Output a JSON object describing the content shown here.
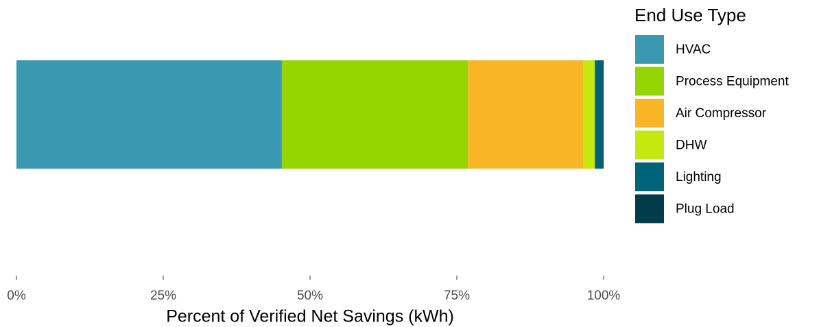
{
  "chart_data": {
    "type": "stacked-bar",
    "orientation": "horizontal",
    "xlabel": "Percent of Verified Net Savings (kWh)",
    "legend_title": "End Use Type",
    "legend": "right",
    "series": [
      {
        "name": "HVAC",
        "color": "#3a98b0",
        "values": [
          45.2
        ]
      },
      {
        "name": "Process Equipment",
        "color": "#95d600",
        "values": [
          31.7
        ]
      },
      {
        "name": "Air Compressor",
        "color": "#f8b526",
        "values": [
          19.6
        ]
      },
      {
        "name": "DHW",
        "color": "#c5e80e",
        "values": [
          2.0
        ]
      },
      {
        "name": "Lighting",
        "color": "#006478",
        "values": [
          1.3
        ]
      },
      {
        "name": "Plug Load",
        "color": "#003c4a",
        "values": [
          0.2
        ]
      }
    ],
    "xlim": [
      0,
      100
    ],
    "xticks": [
      {
        "value": 0,
        "label": "0%"
      },
      {
        "value": 25,
        "label": "25%"
      },
      {
        "value": 50,
        "label": "50%"
      },
      {
        "value": 75,
        "label": "75%"
      },
      {
        "value": 100,
        "label": "100%"
      }
    ]
  }
}
